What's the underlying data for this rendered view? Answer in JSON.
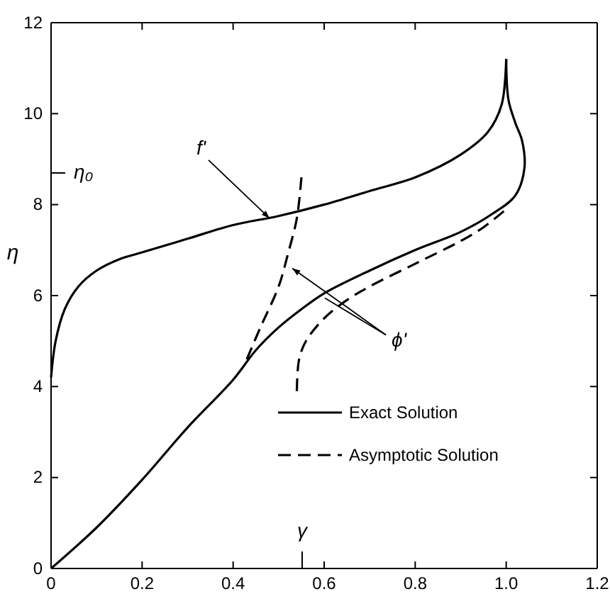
{
  "chart_data": {
    "type": "line",
    "ylabel": "η",
    "xlim": [
      0,
      1.2
    ],
    "ylim": [
      0,
      12
    ],
    "xticks": [
      0,
      0.2,
      0.4,
      0.6,
      0.8,
      {
        "value": 1,
        "label": "1.0"
      },
      1.2
    ],
    "yticks": [
      0,
      2,
      4,
      6,
      8,
      10,
      12
    ],
    "legend": "bottom right",
    "grid": false,
    "marker": "none",
    "series": [
      {
        "name": "Exact Solution",
        "color": "#000000",
        "line_style": "solid",
        "x": [
          0,
          0.01,
          0.03,
          0.06,
          0.1,
          0.15,
          0.2,
          0.3,
          0.4,
          0.5,
          0.6,
          0.7,
          0.8,
          0.9,
          0.96,
          0.99,
          1.0
        ],
        "values": [
          4.2,
          5.0,
          5.7,
          6.2,
          6.55,
          6.8,
          6.95,
          7.25,
          7.55,
          7.75,
          8.0,
          8.3,
          8.6,
          9.1,
          9.6,
          10.2,
          11.2
        ]
      },
      {
        "color": "#000000",
        "line_style": "solid",
        "x": [
          0,
          0.1,
          0.2,
          0.3,
          0.4,
          0.45,
          0.5,
          0.55,
          0.6,
          0.7,
          0.8,
          0.9,
          0.97,
          1.02,
          1.04,
          1.035,
          1.02,
          1.005,
          1.0
        ],
        "values": [
          0,
          0.9,
          1.95,
          3.1,
          4.15,
          4.8,
          5.3,
          5.7,
          6.05,
          6.55,
          7.0,
          7.4,
          7.8,
          8.2,
          8.8,
          9.4,
          9.8,
          10.3,
          11.2
        ]
      },
      {
        "name": "Asymptotic Solution",
        "color": "#000000",
        "line_style": "dashed",
        "x": [
          0.43,
          0.46,
          0.5,
          0.52,
          0.54,
          0.55
        ],
        "values": [
          4.6,
          5.3,
          6.2,
          6.9,
          7.7,
          8.6
        ]
      },
      {
        "color": "#000000",
        "line_style": "dashed",
        "x": [
          0.54,
          0.545,
          0.56,
          0.6,
          0.65,
          0.7,
          0.8,
          0.9,
          0.95,
          1.0
        ],
        "values": [
          3.9,
          4.6,
          5.0,
          5.5,
          5.9,
          6.2,
          6.7,
          7.2,
          7.5,
          7.9
        ]
      }
    ],
    "annotations": [
      {
        "text": "f'",
        "x": 0.48,
        "y": 7.7
      },
      {
        "text": "ϕ'",
        "x": 0.53,
        "y": 6.6
      },
      "η₀",
      "γ"
    ]
  }
}
